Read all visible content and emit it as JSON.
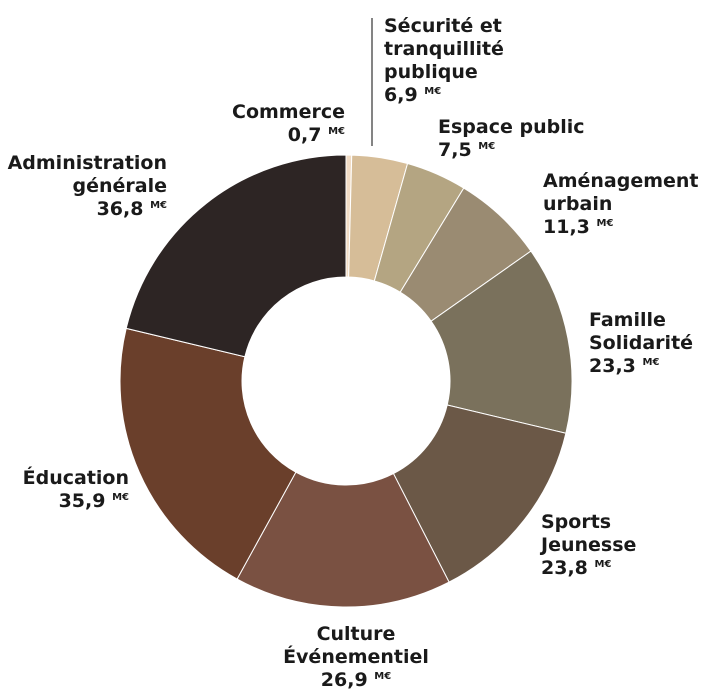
{
  "chart_data": {
    "type": "pie",
    "unit": "M€",
    "categories": [
      "Commerce",
      "Sécurité et tranquillité publique",
      "Espace public",
      "Aménagement urbain",
      "Famille Solidarité",
      "Sports Jeunesse",
      "Culture Événementiel",
      "Éducation",
      "Administration générale"
    ],
    "values": [
      0.7,
      6.9,
      7.5,
      11.3,
      23.3,
      23.8,
      26.9,
      35.9,
      36.8
    ],
    "labels": [
      {
        "lines": [
          "Commerce"
        ],
        "value": "0,7"
      },
      {
        "lines": [
          "Sécurité et",
          "tranquillité",
          "publique"
        ],
        "value": "6,9"
      },
      {
        "lines": [
          "Espace public"
        ],
        "value": "7,5"
      },
      {
        "lines": [
          "Aménagement",
          "urbain"
        ],
        "value": "11,3"
      },
      {
        "lines": [
          "Famille",
          "Solidarité"
        ],
        "value": "23,3"
      },
      {
        "lines": [
          "Sports",
          "Jeunesse"
        ],
        "value": "23,8"
      },
      {
        "lines": [
          "Culture",
          "Événementiel"
        ],
        "value": "26,9"
      },
      {
        "lines": [
          "Éducation"
        ],
        "value": "35,9"
      },
      {
        "lines": [
          "Administration",
          "générale"
        ],
        "value": "36,8"
      }
    ],
    "colors": [
      "#f1dcc5",
      "#d6bd98",
      "#b4a582",
      "#9a8b72",
      "#7a715c",
      "#6b5847",
      "#7a5142",
      "#6a3f2b",
      "#2d2524"
    ]
  }
}
